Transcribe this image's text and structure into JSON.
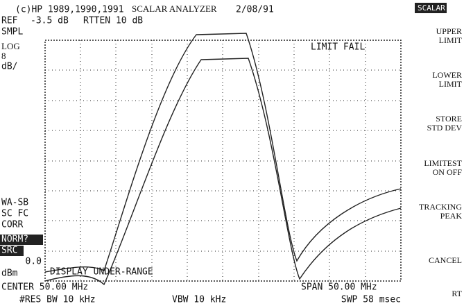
{
  "header": {
    "copyright": "(c)HP 1989,1990,1991",
    "title": "SCALAR ANALYZER",
    "date": "2/08/91",
    "ref_label": "REF",
    "ref_value": "-3.5 dB",
    "atten": "RTTEN 10 dB"
  },
  "left_labels": [
    "SMPL",
    "LOG",
    "8",
    "dB/",
    "WA-SB",
    "SC FC",
    "CORR",
    "NORM?",
    "SRC",
    "0.0",
    "dBm"
  ],
  "annotations": {
    "limit": "LIMIT FAIL",
    "under_range": "DISPLAY UNDER-RANGE"
  },
  "footer": {
    "center": "CENTER 50.00 MHz",
    "span": "SPAN 50.00 MHz",
    "res_bw": "#RES BW 10 kHz",
    "vbw": "VBW 10 kHz",
    "sweep": "SWP 58 msec"
  },
  "softkeys": {
    "menu": "SCALAR",
    "keys": [
      [
        "UPPER",
        "LIMIT"
      ],
      [
        "LOWER",
        "LIMIT"
      ],
      [
        "STORE",
        "STD DEV"
      ],
      [
        "LIMITEST",
        "ON OFF"
      ],
      [
        "TRACKING",
        "PEAK"
      ],
      [
        "CANCEL"
      ],
      [
        "RT"
      ]
    ]
  }
}
